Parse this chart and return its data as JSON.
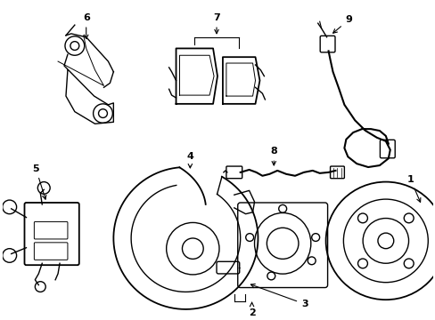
{
  "background_color": "#ffffff",
  "line_color": "#000000",
  "line_width": 1.0,
  "fig_width": 4.89,
  "fig_height": 3.6,
  "dpi": 100
}
